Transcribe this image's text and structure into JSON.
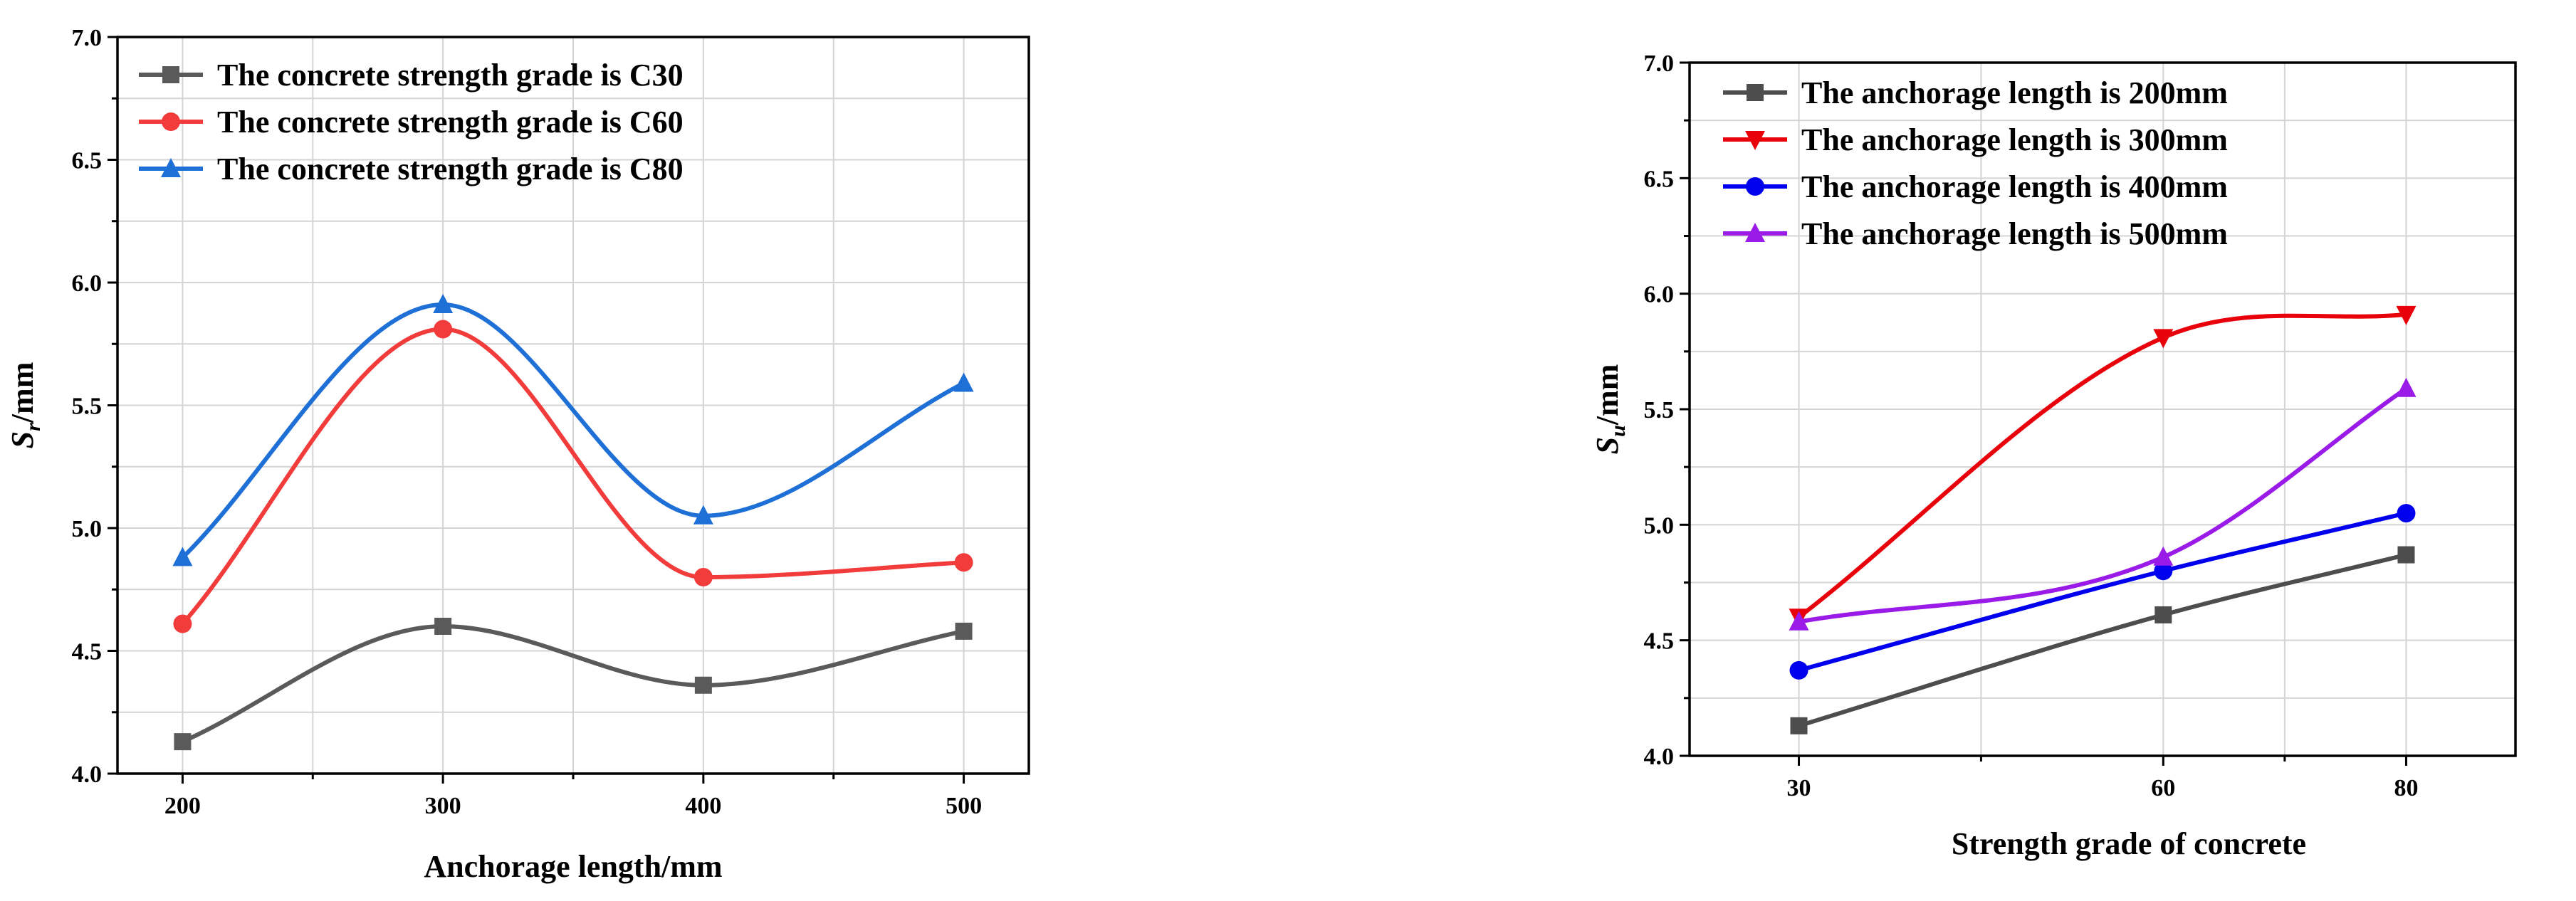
{
  "chart_data": [
    {
      "type": "line",
      "xlabel": "Anchorage length/mm",
      "ylabel_main": "S",
      "ylabel_sub": "r",
      "ylabel_unit": "/mm",
      "xlim": [
        175,
        525
      ],
      "ylim": [
        4.0,
        7.0
      ],
      "x_ticks": [
        200,
        300,
        400,
        500
      ],
      "y_ticks": [
        4.0,
        4.5,
        5.0,
        5.5,
        6.0,
        6.5,
        7.0
      ],
      "x_tick_labels": [
        "200",
        "300",
        "400",
        "500"
      ],
      "y_tick_labels": [
        "4.0",
        "4.5",
        "5.0",
        "5.5",
        "6.0",
        "6.5",
        "7.0"
      ],
      "grid": true,
      "legend_position": "top-left",
      "smooth": true,
      "series": [
        {
          "name": "The concrete strength grade is C30",
          "color": "#5a5a5a",
          "marker": "square",
          "x": [
            200,
            300,
            400,
            500
          ],
          "y": [
            4.13,
            4.6,
            4.36,
            4.58
          ]
        },
        {
          "name": "The concrete strength grade is C60",
          "color": "#f23c3c",
          "marker": "circle",
          "x": [
            200,
            300,
            400,
            500
          ],
          "y": [
            4.61,
            5.81,
            4.8,
            4.86
          ]
        },
        {
          "name": "The concrete strength grade is C80",
          "color": "#1e6fd6",
          "marker": "triangle-up",
          "x": [
            200,
            300,
            400,
            500
          ],
          "y": [
            4.88,
            5.91,
            5.05,
            5.59
          ]
        }
      ]
    },
    {
      "type": "line",
      "xlabel": "Strength grade of concrete",
      "ylabel_main": "S",
      "ylabel_sub": "u",
      "ylabel_unit": "/mm",
      "xlim": [
        21,
        89
      ],
      "ylim": [
        4.0,
        7.0
      ],
      "x_ticks": [
        30,
        60,
        80
      ],
      "y_ticks": [
        4.0,
        4.5,
        5.0,
        5.5,
        6.0,
        6.5,
        7.0
      ],
      "x_tick_labels": [
        "30",
        "60",
        "80"
      ],
      "y_tick_labels": [
        "4.0",
        "4.5",
        "5.0",
        "5.5",
        "6.0",
        "6.5",
        "7.0"
      ],
      "grid": true,
      "legend_position": "top-left",
      "smooth": true,
      "series": [
        {
          "name": "The anchorage length is 200mm",
          "color": "#4d4d4d",
          "marker": "square",
          "x": [
            30,
            60,
            80
          ],
          "y": [
            4.13,
            4.61,
            4.87
          ]
        },
        {
          "name": "The anchorage length is 300mm",
          "color": "#e8000b",
          "marker": "triangle-down",
          "x": [
            30,
            60,
            80
          ],
          "y": [
            4.6,
            5.81,
            5.91
          ]
        },
        {
          "name": "The anchorage length is 400mm",
          "color": "#0000ee",
          "marker": "circle",
          "x": [
            30,
            60,
            80
          ],
          "y": [
            4.37,
            4.8,
            5.05
          ]
        },
        {
          "name": "The anchorage length is 500mm",
          "color": "#9a1be8",
          "marker": "triangle-up",
          "x": [
            30,
            60,
            80
          ],
          "y": [
            4.58,
            4.86,
            5.59
          ]
        }
      ]
    }
  ]
}
